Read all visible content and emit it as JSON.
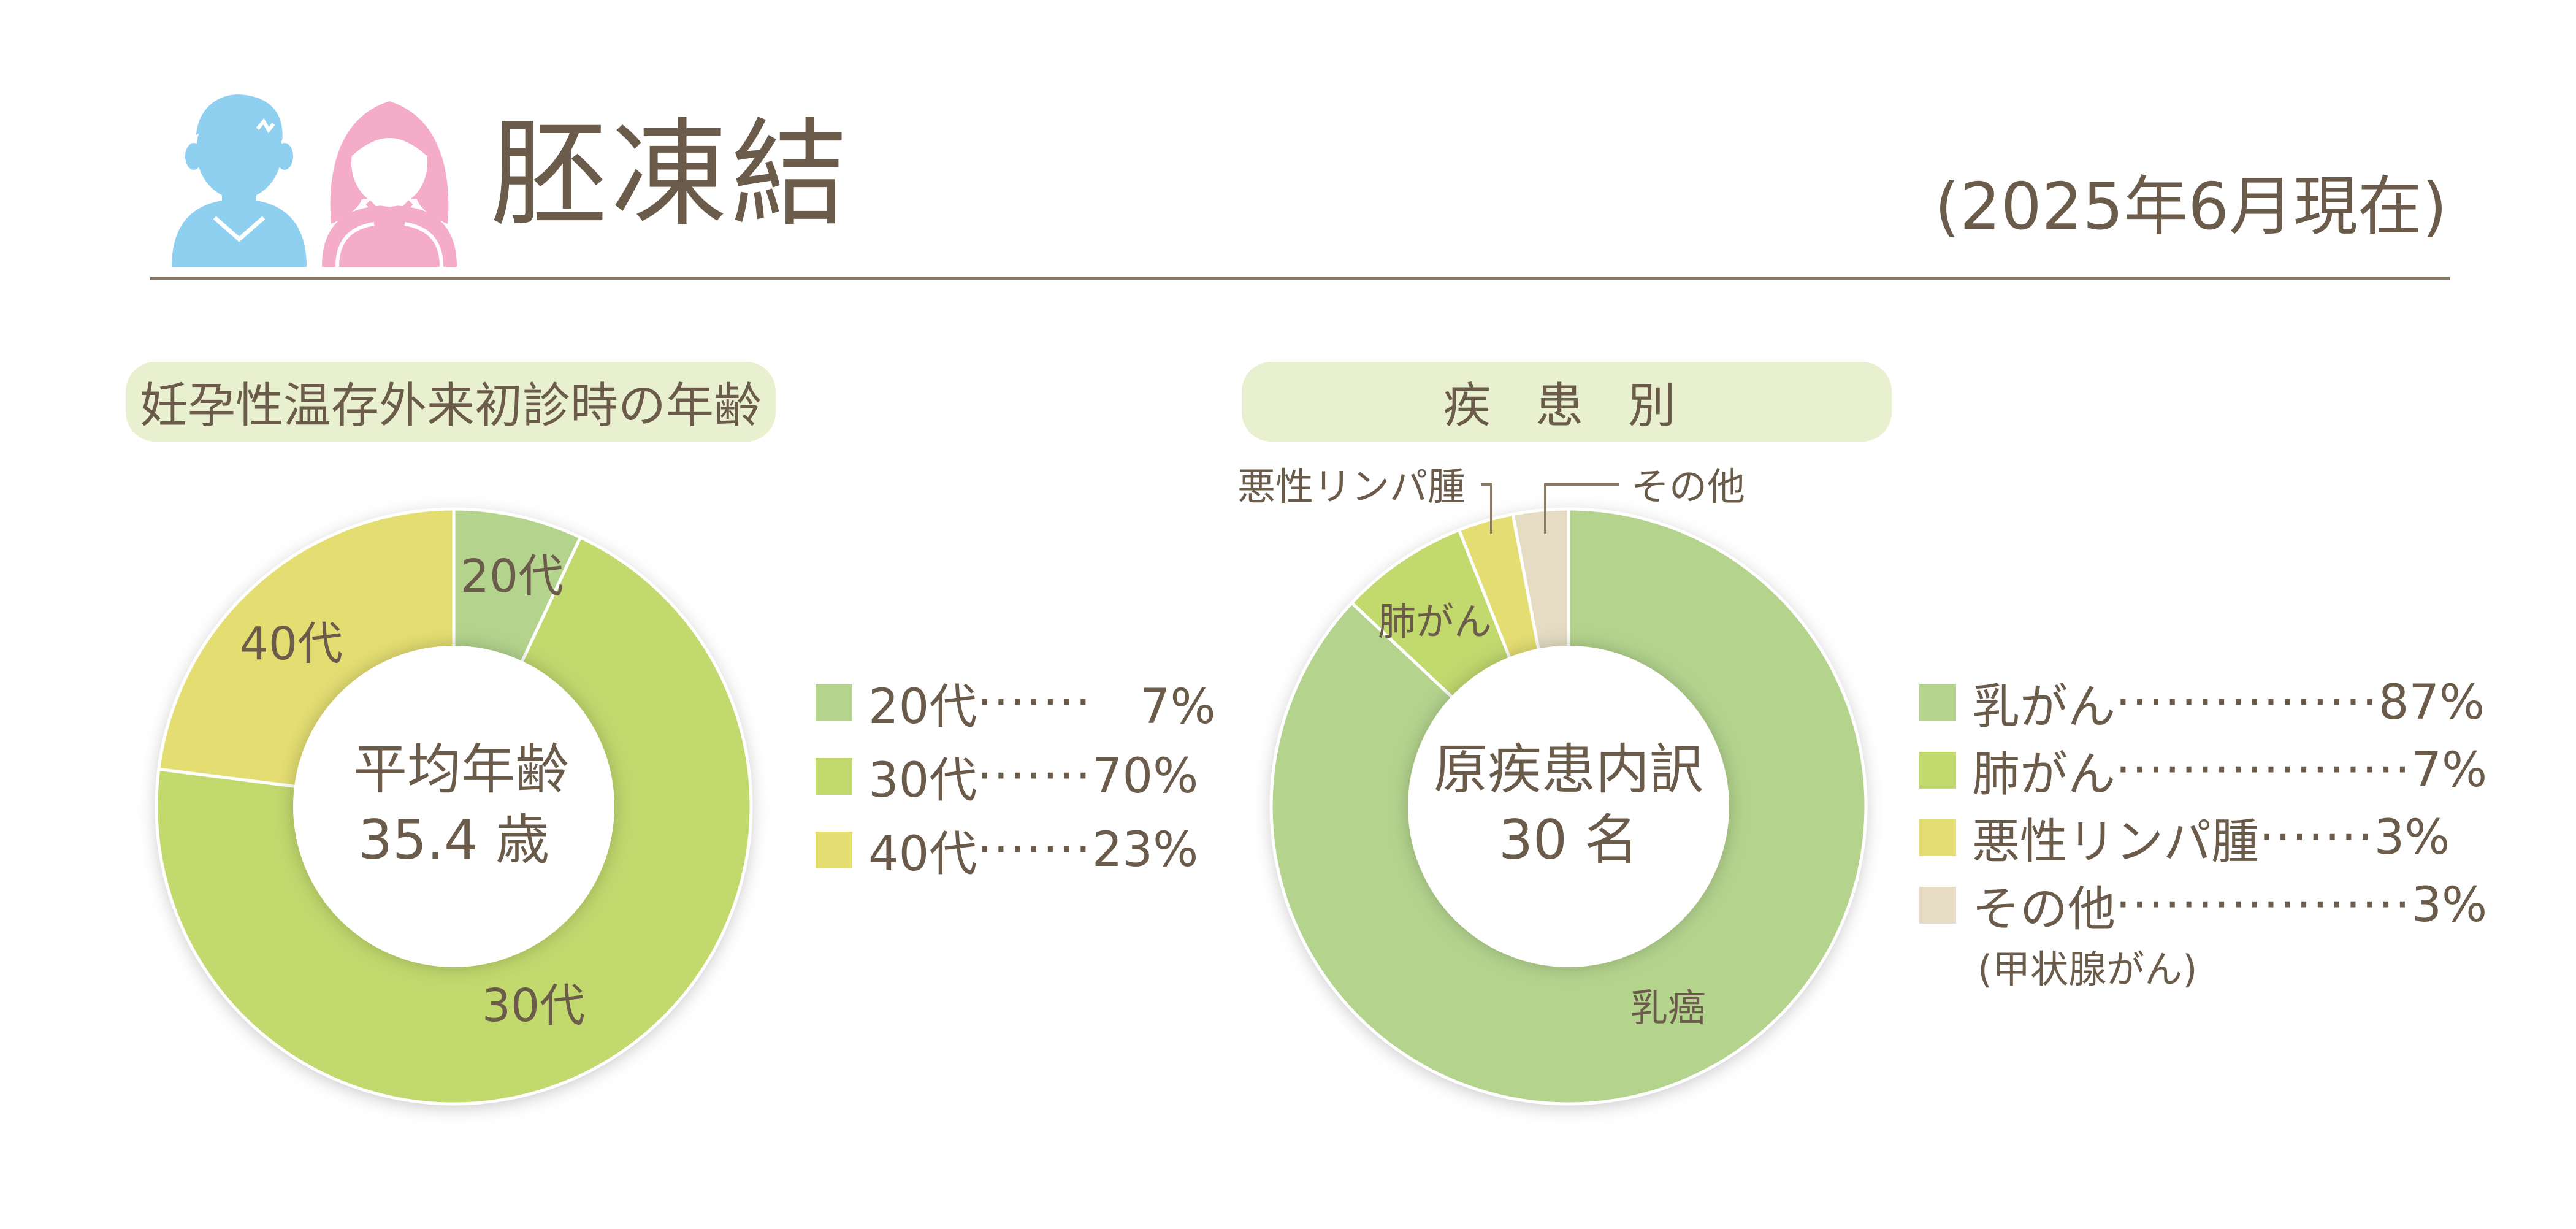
{
  "header": {
    "title": "胚凍結",
    "as_of": "(2025年6月現在)",
    "icons": [
      "male-person-icon",
      "female-person-icon"
    ]
  },
  "colors": {
    "green_light": "#b4d48e",
    "green_lime": "#c2d96e",
    "yellow": "#e4de72",
    "beige": "#e5dcc3",
    "pill_bg": "#e8f0d0",
    "text": "#6b5b4a",
    "male_icon": "#8fcff0",
    "female_icon": "#f4acc9"
  },
  "chart_data": [
    {
      "type": "pie",
      "title": "妊孕性温存外来初診時の年齢",
      "center_label": [
        "平均年齢",
        "35.4 歳"
      ],
      "categories": [
        "20代",
        "30代",
        "40代"
      ],
      "values": [
        7,
        70,
        23
      ],
      "unit": "%",
      "slice_labels": [
        "20代",
        "30代",
        "40代"
      ],
      "legend": [
        {
          "label": "20代",
          "dots": "·······",
          "value": "　7%"
        },
        {
          "label": "30代",
          "dots": "·······",
          "value": "70%"
        },
        {
          "label": "40代",
          "dots": "·······",
          "value": "23%"
        }
      ],
      "legend_position": "right"
    },
    {
      "type": "pie",
      "title": "疾 患 別",
      "center_label": [
        "原疾患内訳",
        "30 名"
      ],
      "categories": [
        "乳がん",
        "肺がん",
        "悪性リンパ腫",
        "その他"
      ],
      "values": [
        87,
        7,
        3,
        3
      ],
      "unit": "%",
      "slice_labels": [
        "乳癌",
        "肺がん",
        "悪性リンパ腫",
        "その他"
      ],
      "legend": [
        {
          "label": "乳がん",
          "dots": "················",
          "value": "87%"
        },
        {
          "label": "肺がん",
          "dots": "··················",
          "value": "7%"
        },
        {
          "label": "悪性リンパ腫",
          "dots": "·······",
          "value": "3%"
        },
        {
          "label": "その他",
          "dots": "··················",
          "value": "3%"
        }
      ],
      "legend_note": "(甲状腺がん)",
      "legend_position": "right"
    }
  ]
}
